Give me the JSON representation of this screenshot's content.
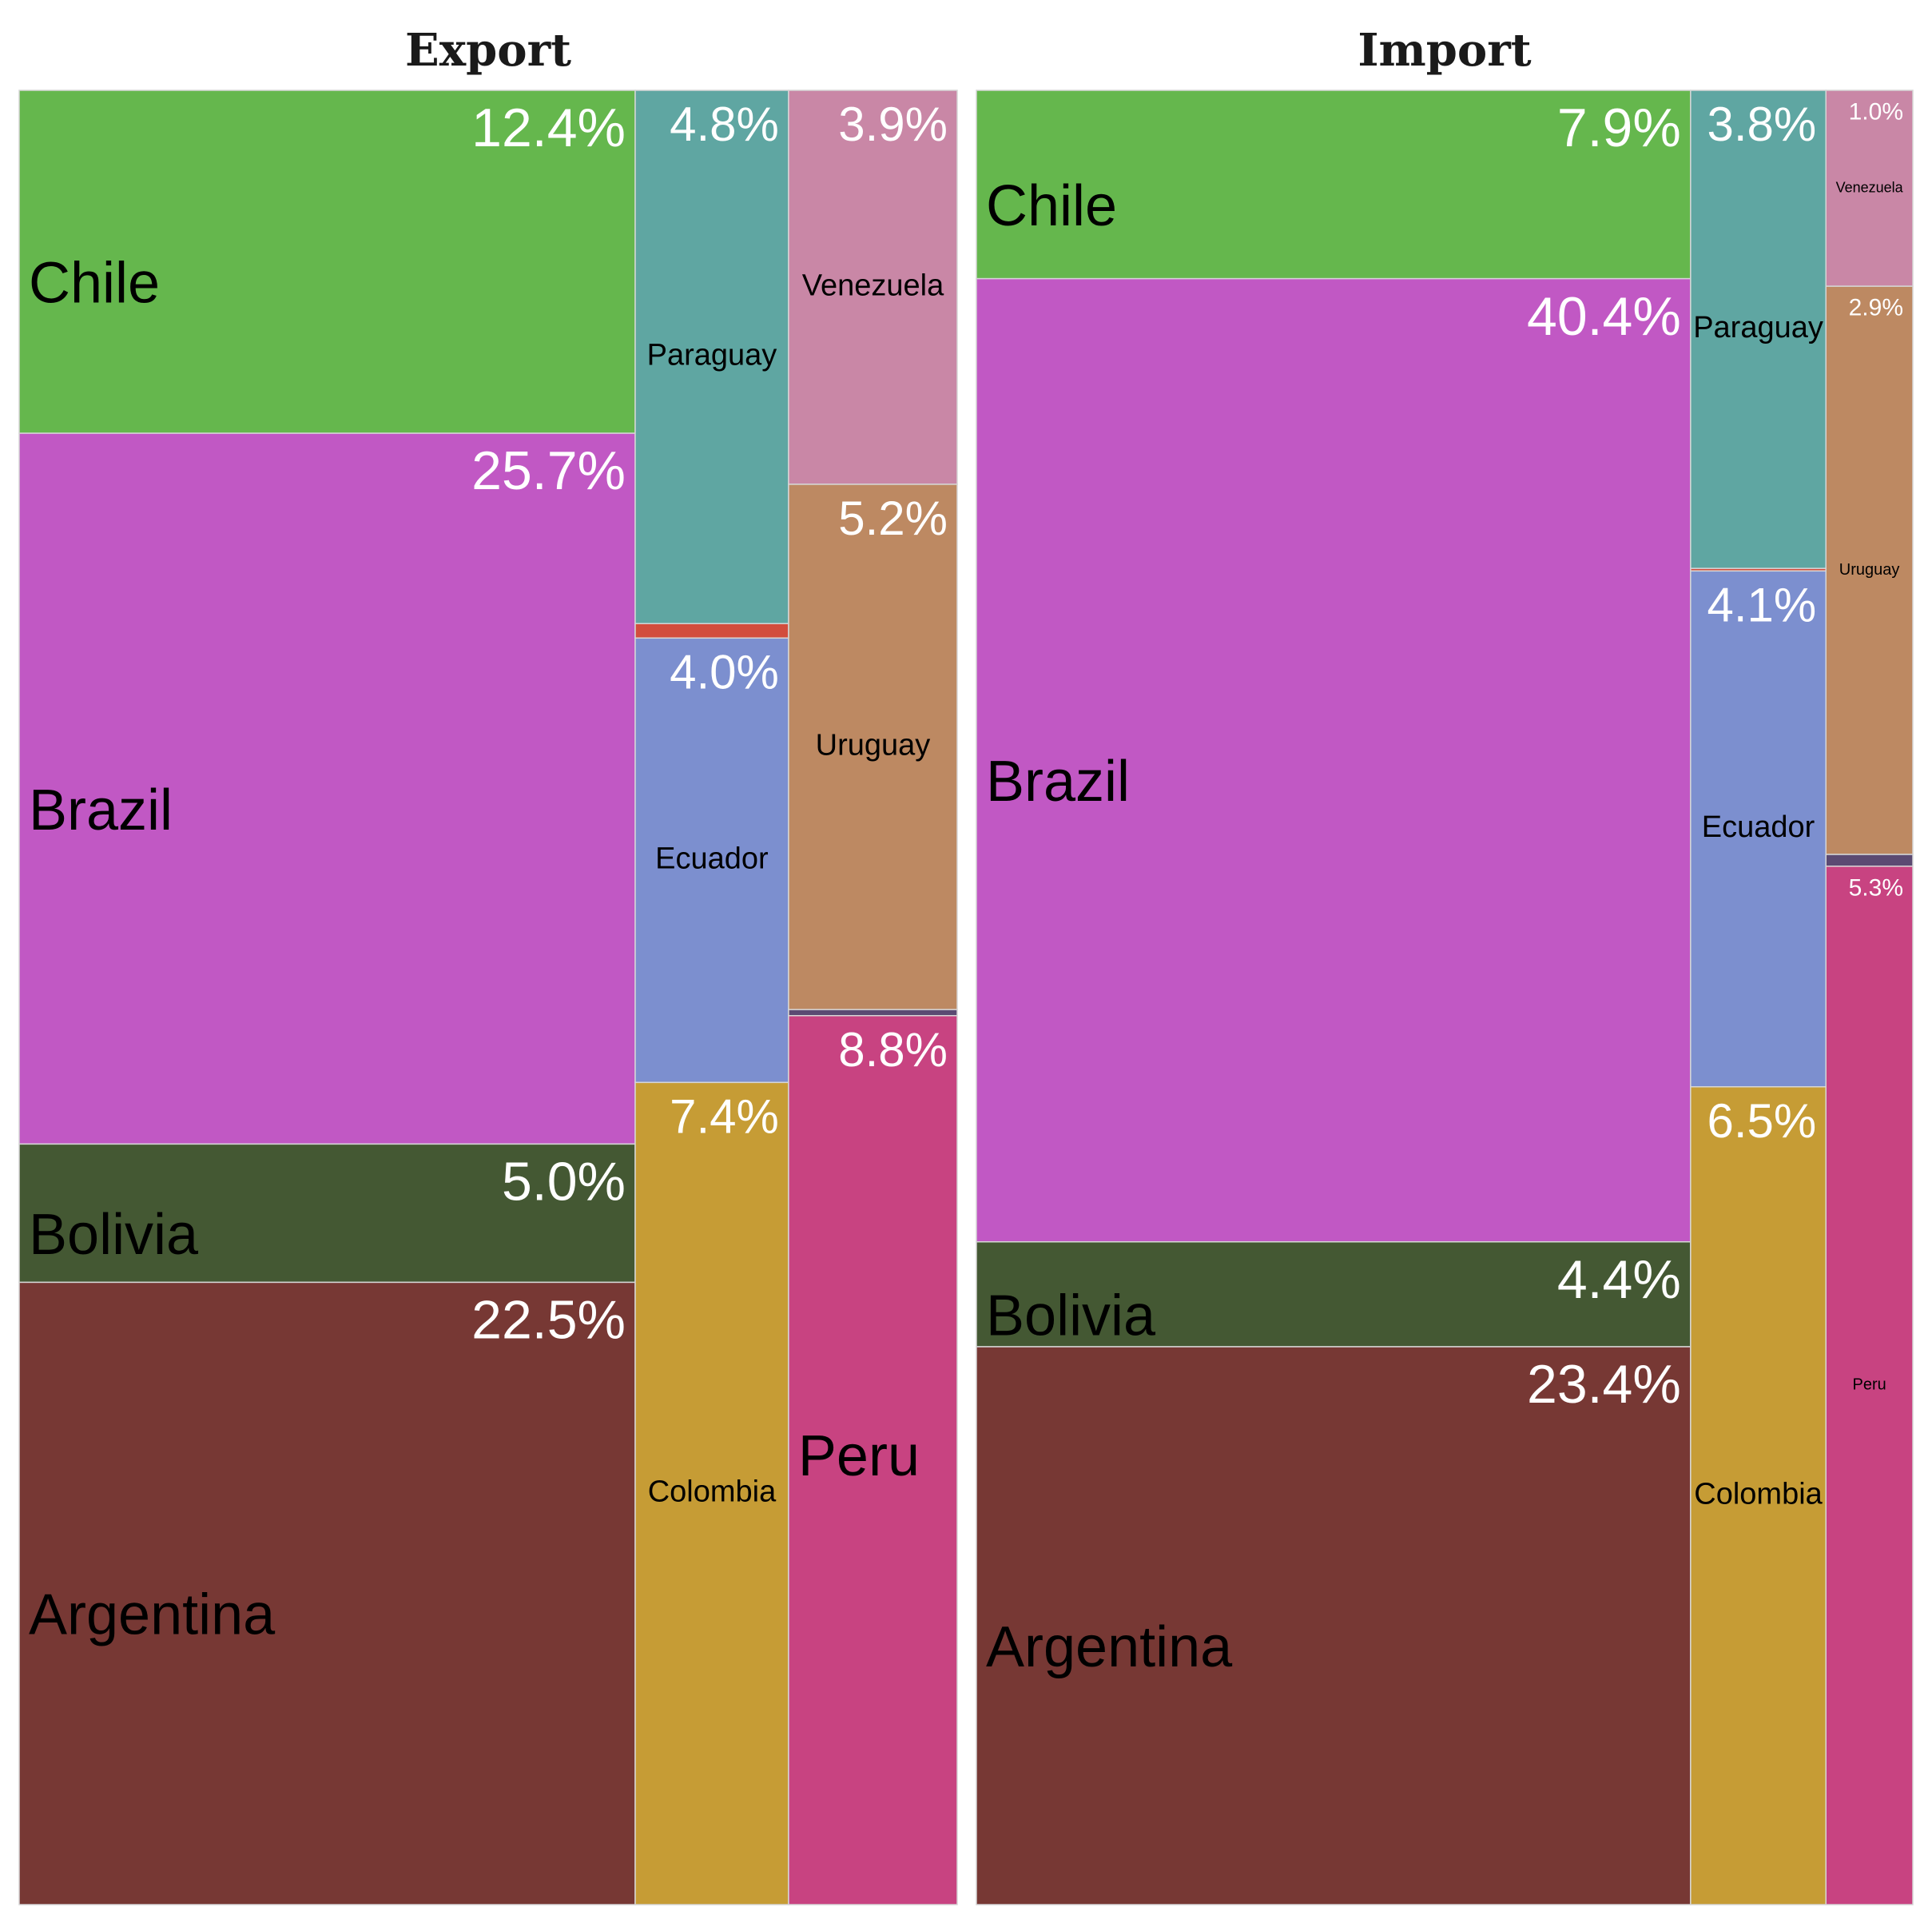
{
  "chart_data": [
    {
      "type": "treemap",
      "title": "Export",
      "items": [
        {
          "name": "Chile",
          "value": 12.4,
          "label": "12.4%",
          "color": "#65b74d"
        },
        {
          "name": "Brazil",
          "value": 25.7,
          "label": "25.7%",
          "color": "#c158c4"
        },
        {
          "name": "Bolivia",
          "value": 5.0,
          "label": "5.0%",
          "color": "#445833"
        },
        {
          "name": "Argentina",
          "value": 22.5,
          "label": "22.5%",
          "color": "#773834"
        },
        {
          "name": "Paraguay",
          "value": 4.8,
          "label": "4.8%",
          "color": "#5fa6a2"
        },
        {
          "name": "",
          "value": 0.13,
          "label": "",
          "color": "#d24d3d"
        },
        {
          "name": "Ecuador",
          "value": 4.0,
          "label": "4.0%",
          "color": "#7c8fcf"
        },
        {
          "name": "Colombia",
          "value": 7.4,
          "label": "7.4%",
          "color": "#c69c35"
        },
        {
          "name": "Venezuela",
          "value": 3.9,
          "label": "3.9%",
          "color": "#c987a6"
        },
        {
          "name": "Uruguay",
          "value": 5.2,
          "label": "5.2%",
          "color": "#bd8962"
        },
        {
          "name": "",
          "value": 0.06,
          "label": "",
          "color": "#5b4a72"
        },
        {
          "name": "Peru",
          "value": 8.8,
          "label": "8.8%",
          "color": "#c84381"
        }
      ]
    },
    {
      "type": "treemap",
      "title": "Import",
      "items": [
        {
          "name": "Chile",
          "value": 7.9,
          "label": "7.9%",
          "color": "#65b74d"
        },
        {
          "name": "Brazil",
          "value": 40.4,
          "label": "40.4%",
          "color": "#c158c4"
        },
        {
          "name": "Bolivia",
          "value": 4.4,
          "label": "4.4%",
          "color": "#445833"
        },
        {
          "name": "Argentina",
          "value": 23.4,
          "label": "23.4%",
          "color": "#773834"
        },
        {
          "name": "Paraguay",
          "value": 3.8,
          "label": "3.8%",
          "color": "#5fa6a2"
        },
        {
          "name": "",
          "value": 0.02,
          "label": "",
          "color": "#d24d3d"
        },
        {
          "name": "Ecuador",
          "value": 4.1,
          "label": "4.1%",
          "color": "#7c8fcf"
        },
        {
          "name": "Colombia",
          "value": 6.5,
          "label": "6.5%",
          "color": "#c69c35"
        },
        {
          "name": "Venezuela",
          "value": 1.0,
          "label": "1.0%",
          "color": "#c987a6"
        },
        {
          "name": "Uruguay",
          "value": 2.9,
          "label": "2.9%",
          "color": "#bd8962"
        },
        {
          "name": "",
          "value": 0.06,
          "label": "",
          "color": "#5b4a72"
        },
        {
          "name": "Peru",
          "value": 5.3,
          "label": "5.3%",
          "color": "#c84381"
        }
      ]
    }
  ]
}
